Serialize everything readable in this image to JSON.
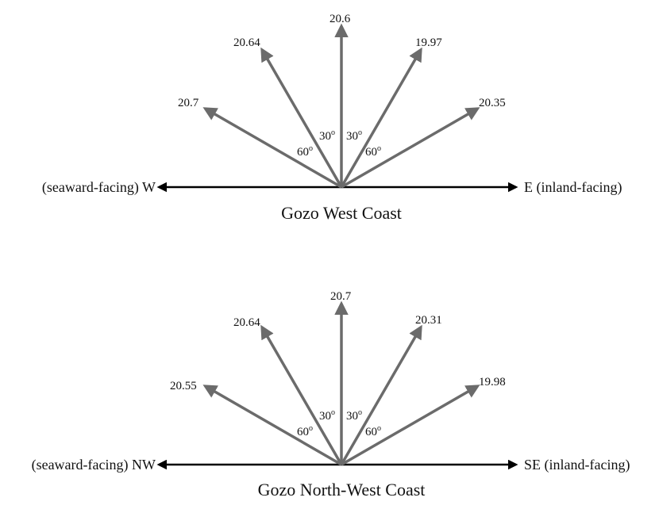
{
  "colors": {
    "ray": "#6b6b6b",
    "axis": "#000000",
    "text": "#111111"
  },
  "panels": [
    {
      "title": "Gozo West Coast",
      "left_label": "(seaward-facing) W",
      "right_label": "E  (inland-facing)",
      "rays": [
        {
          "angle_deg": 150,
          "value": "20.7"
        },
        {
          "angle_deg": 120,
          "value": "20.64"
        },
        {
          "angle_deg": 90,
          "value": "20.6"
        },
        {
          "angle_deg": 60,
          "value": "19.97"
        },
        {
          "angle_deg": 30,
          "value": "20.35"
        }
      ],
      "angle_labels": [
        "60",
        "30",
        "30",
        "60"
      ],
      "angle_unit": "o"
    },
    {
      "title": "Gozo North-West Coast",
      "left_label": "(seaward-facing) NW",
      "right_label": "SE (inland-facing)",
      "rays": [
        {
          "angle_deg": 150,
          "value": "20.55"
        },
        {
          "angle_deg": 120,
          "value": "20.64"
        },
        {
          "angle_deg": 90,
          "value": "20.7"
        },
        {
          "angle_deg": 60,
          "value": "20.31"
        },
        {
          "angle_deg": 30,
          "value": "19.98"
        }
      ],
      "angle_labels": [
        "60",
        "30",
        "30",
        "60"
      ],
      "angle_unit": "o"
    }
  ]
}
